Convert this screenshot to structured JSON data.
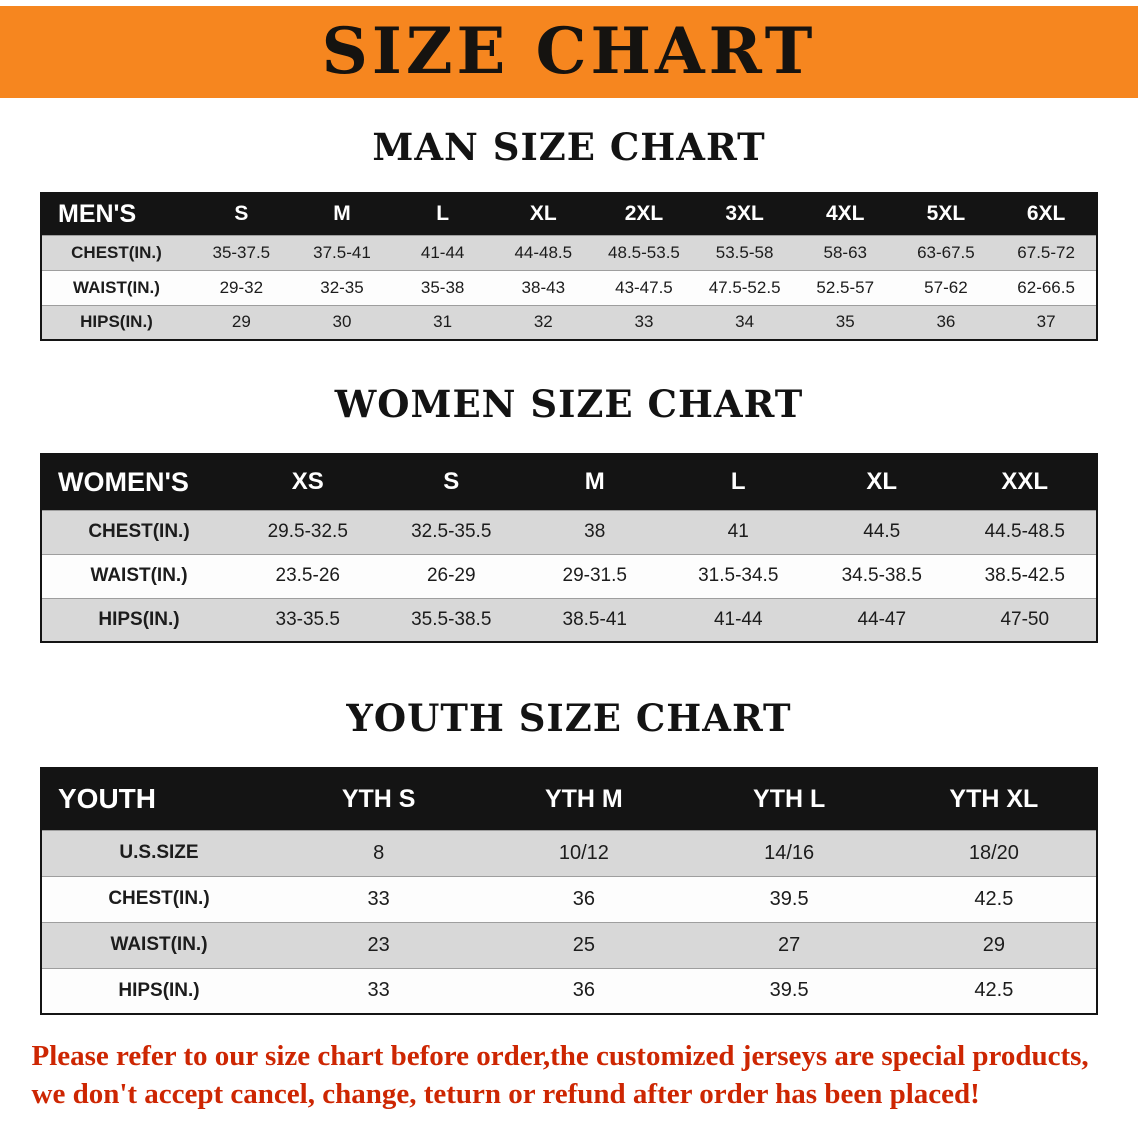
{
  "banner": {
    "title": "SIZE CHART",
    "bg_color": "#f6861f"
  },
  "sections": [
    {
      "heading": "MAN SIZE CHART",
      "table": {
        "header": [
          "MEN'S",
          "S",
          "M",
          "L",
          "XL",
          "2XL",
          "3XL",
          "4XL",
          "5XL",
          "6XL"
        ],
        "rows": [
          [
            "CHEST(IN.)",
            "35-37.5",
            "37.5-41",
            "41-44",
            "44-48.5",
            "48.5-53.5",
            "53.5-58",
            "58-63",
            "63-67.5",
            "67.5-72"
          ],
          [
            "WAIST(IN.)",
            "29-32",
            "32-35",
            "35-38",
            "38-43",
            "43-47.5",
            "47.5-52.5",
            "52.5-57",
            "57-62",
            "62-66.5"
          ],
          [
            "HIPS(IN.)",
            "29",
            "30",
            "31",
            "32",
            "33",
            "34",
            "35",
            "36",
            "37"
          ]
        ]
      }
    },
    {
      "heading": "WOMEN SIZE CHART",
      "table": {
        "header": [
          "WOMEN'S",
          "XS",
          "S",
          "M",
          "L",
          "XL",
          "XXL"
        ],
        "rows": [
          [
            "CHEST(IN.)",
            "29.5-32.5",
            "32.5-35.5",
            "38",
            "41",
            "44.5",
            "44.5-48.5"
          ],
          [
            "WAIST(IN.)",
            "23.5-26",
            "26-29",
            "29-31.5",
            "31.5-34.5",
            "34.5-38.5",
            "38.5-42.5"
          ],
          [
            "HIPS(IN.)",
            "33-35.5",
            "35.5-38.5",
            "38.5-41",
            "41-44",
            "44-47",
            "47-50"
          ]
        ]
      }
    },
    {
      "heading": "YOUTH SIZE CHART",
      "table": {
        "header": [
          "YOUTH",
          "YTH S",
          "YTH M",
          "YTH L",
          "YTH XL"
        ],
        "rows": [
          [
            "U.S.SIZE",
            "8",
            "10/12",
            "14/16",
            "18/20"
          ],
          [
            "CHEST(IN.)",
            "33",
            "36",
            "39.5",
            "42.5"
          ],
          [
            "WAIST(IN.)",
            "23",
            "25",
            "27",
            "29"
          ],
          [
            "HIPS(IN.)",
            "33",
            "36",
            "39.5",
            "42.5"
          ]
        ]
      }
    }
  ],
  "disclaimer": {
    "line1": "Please refer to our size chart before order,the customized jerseys are special products,",
    "line2": "we don't accept cancel, change, teturn or refund after order has been placed!",
    "color": "#cd2602"
  }
}
